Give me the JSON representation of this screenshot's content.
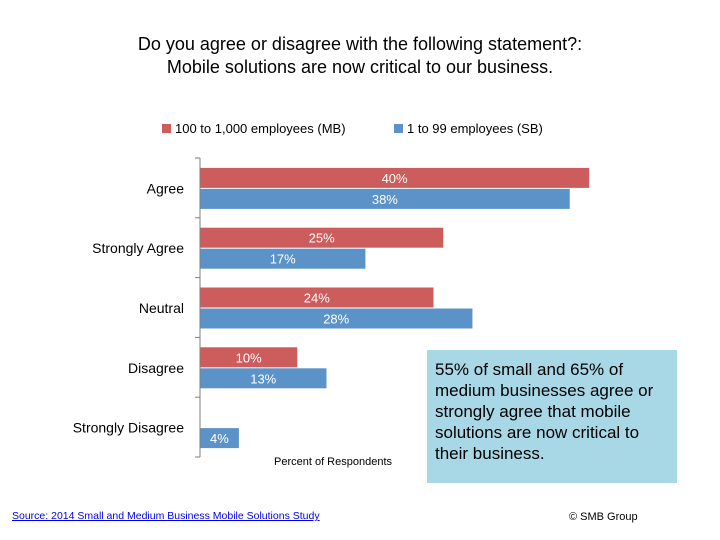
{
  "chart_data": {
    "type": "bar",
    "orientation": "horizontal",
    "title": [
      "Do you agree or disagree with the following statement?:",
      "Mobile solutions are now critical to our business."
    ],
    "xlabel": "Percent of Respondents",
    "ylabel": "",
    "xlim": [
      0,
      45
    ],
    "grid": false,
    "legend_position": "top",
    "categories": [
      "Agree",
      "Strongly Agree",
      "Neutral",
      "Disagree",
      "Strongly Disagree"
    ],
    "series": [
      {
        "name": "100 to 1,000 employees (MB)",
        "color": "#cd5c5c",
        "values": [
          40,
          25,
          24,
          10,
          null
        ],
        "labels": [
          "40%",
          "25%",
          "24%",
          "10%",
          ""
        ]
      },
      {
        "name": "1 to 99 employees (SB)",
        "color": "#5b93c9",
        "values": [
          38,
          17,
          28,
          13,
          4
        ],
        "labels": [
          "38%",
          "17%",
          "28%",
          "13%",
          "4%"
        ]
      }
    ],
    "annotation": "55% of small and 65% of medium businesses agree or strongly agree that mobile solutions are now critical to their business."
  },
  "footer": {
    "source": "Source: 2014 Small and Medium Business Mobile Solutions Study",
    "copyright": "© SMB Group"
  },
  "colors": {
    "mb": "#cd5c5c",
    "sb": "#5b93c9",
    "callout_bg": "#a8d7e6",
    "axis": "#7f7f7f"
  }
}
